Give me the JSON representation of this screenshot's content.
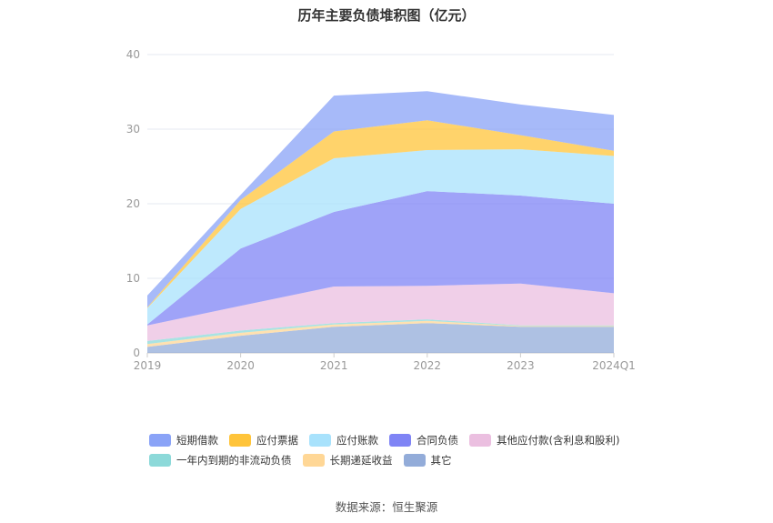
{
  "title": "历年主要负债堆积图（亿元）",
  "source": "数据来源：恒生聚源",
  "chart_data": {
    "type": "area",
    "stacked": true,
    "categories": [
      "2019",
      "2020",
      "2021",
      "2022",
      "2023",
      "2024Q1"
    ],
    "ylim": [
      0,
      40
    ],
    "yticks": [
      0,
      10,
      20,
      30,
      40
    ],
    "grid": true,
    "legend_position": "bottom",
    "series": [
      {
        "name": "其它",
        "color": "#93acd9",
        "values": [
          0.8,
          2.3,
          3.5,
          4.0,
          3.5,
          3.5
        ]
      },
      {
        "name": "长期递延收益",
        "color": "#ffd796",
        "values": [
          0.4,
          0.4,
          0.3,
          0.3,
          0.1,
          0.1
        ]
      },
      {
        "name": "一年内到期的非流动负债",
        "color": "#8cd9d9",
        "values": [
          0.4,
          0.3,
          0.2,
          0.2,
          0.1,
          0.1
        ]
      },
      {
        "name": "其他应付款(含利息和股利)",
        "color": "#ebbfe0",
        "values": [
          2.1,
          3.3,
          4.9,
          4.5,
          5.6,
          4.3
        ]
      },
      {
        "name": "合同负债",
        "color": "#7f84f5",
        "values": [
          0.1,
          7.7,
          10.0,
          12.7,
          11.8,
          12.0
        ]
      },
      {
        "name": "应付账款",
        "color": "#a8e2fc",
        "values": [
          2.2,
          5.3,
          7.2,
          5.5,
          6.2,
          6.4
        ]
      },
      {
        "name": "应付票据",
        "color": "#ffc43a",
        "values": [
          0.1,
          1.2,
          3.6,
          4.0,
          1.9,
          0.7
        ]
      },
      {
        "name": "短期借款",
        "color": "#8aa3f7",
        "values": [
          1.6,
          0.7,
          4.8,
          3.9,
          4.1,
          4.8
        ]
      }
    ]
  },
  "legend": {
    "row1": [
      "短期借款",
      "应付票据",
      "应付账款",
      "合同负债",
      "其他应付款(含利息和股利)"
    ],
    "row2": [
      "一年内到期的非流动负债",
      "长期递延收益",
      "其它"
    ],
    "colors": {
      "短期借款": "#8aa3f7",
      "应付票据": "#ffc43a",
      "应付账款": "#a8e2fc",
      "合同负债": "#7f84f5",
      "其他应付款(含利息和股利)": "#ebbfe0",
      "一年内到期的非流动负债": "#8cd9d9",
      "长期递延收益": "#ffd796",
      "其它": "#93acd9"
    }
  }
}
